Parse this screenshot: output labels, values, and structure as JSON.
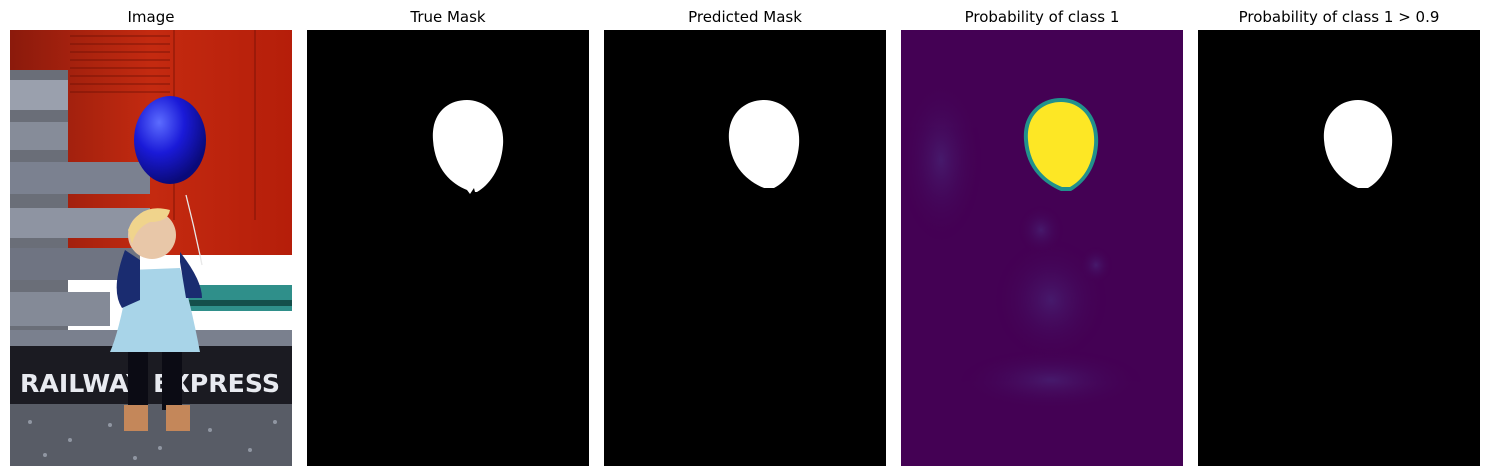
{
  "figure": {
    "panels": [
      {
        "title": "Image"
      },
      {
        "title": "True Mask"
      },
      {
        "title": "Predicted Mask"
      },
      {
        "title": "Probability of class 1"
      },
      {
        "title": "Probability of class 1 > 0.9"
      }
    ],
    "photo_sign_text": "RAILWAY EXPRESS",
    "colors": {
      "background": "#ffffff",
      "mask_background": "#000000",
      "mask_foreground": "#ffffff",
      "prob_low": "#440154",
      "prob_high": "#fde725",
      "balloon": "#1a1ad8",
      "wall": "#c42a10"
    }
  }
}
